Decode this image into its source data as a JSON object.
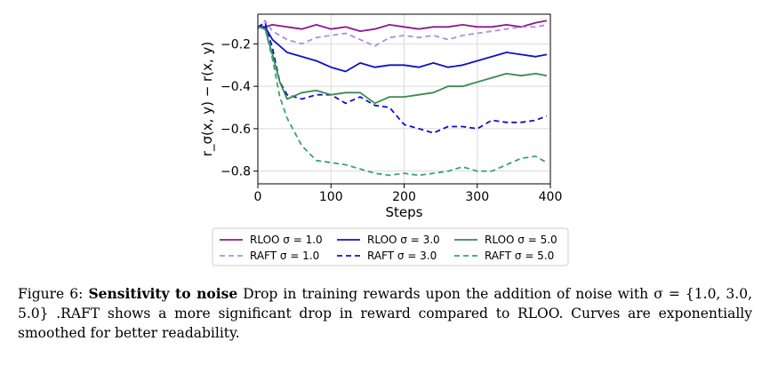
{
  "chart_data": {
    "type": "line",
    "xlabel": "Steps",
    "ylabel": "r_σ(x, y) − r(x, y)",
    "xlim": [
      0,
      400
    ],
    "ylim": [
      -0.86,
      -0.06
    ],
    "xticks": [
      0,
      100,
      200,
      300,
      400
    ],
    "xtick_labels": [
      "0",
      "100",
      "200",
      "300",
      "400"
    ],
    "yticks": [
      -0.2,
      -0.4,
      -0.6,
      -0.8
    ],
    "ytick_labels": [
      "−0.2",
      "−0.4",
      "−0.6",
      "−0.8"
    ],
    "grid": true,
    "legend_position": "below",
    "series": [
      {
        "name": "RLOO σ = 1.0",
        "color": "#8b1a8b",
        "dashed": false,
        "x": [
          0,
          10,
          20,
          40,
          60,
          80,
          100,
          120,
          140,
          160,
          180,
          200,
          220,
          240,
          260,
          280,
          300,
          320,
          340,
          360,
          380,
          395
        ],
        "y": [
          -0.12,
          -0.12,
          -0.11,
          -0.12,
          -0.13,
          -0.11,
          -0.13,
          -0.12,
          -0.14,
          -0.13,
          -0.11,
          -0.12,
          -0.13,
          -0.12,
          -0.12,
          -0.11,
          -0.12,
          -0.12,
          -0.11,
          -0.12,
          -0.1,
          -0.09
        ]
      },
      {
        "name": "RAFT σ = 1.0",
        "color": "#b28ddb",
        "dashed": true,
        "x": [
          0,
          10,
          20,
          40,
          60,
          80,
          100,
          120,
          140,
          160,
          180,
          200,
          220,
          240,
          260,
          280,
          300,
          320,
          340,
          360,
          380,
          395
        ],
        "y": [
          -0.13,
          -0.09,
          -0.14,
          -0.18,
          -0.2,
          -0.17,
          -0.16,
          -0.15,
          -0.18,
          -0.21,
          -0.17,
          -0.16,
          -0.17,
          -0.16,
          -0.18,
          -0.16,
          -0.15,
          -0.14,
          -0.13,
          -0.12,
          -0.12,
          -0.11
        ]
      },
      {
        "name": "RLOO σ = 3.0",
        "color": "#1010cc",
        "dashed": false,
        "x": [
          0,
          10,
          20,
          40,
          60,
          80,
          100,
          120,
          140,
          160,
          180,
          200,
          220,
          240,
          260,
          280,
          300,
          320,
          340,
          360,
          380,
          395
        ],
        "y": [
          -0.12,
          -0.12,
          -0.18,
          -0.24,
          -0.26,
          -0.28,
          -0.31,
          -0.33,
          -0.29,
          -0.31,
          -0.3,
          -0.3,
          -0.31,
          -0.29,
          -0.31,
          -0.3,
          -0.28,
          -0.26,
          -0.24,
          -0.25,
          -0.26,
          -0.25
        ]
      },
      {
        "name": "RAFT σ = 3.0",
        "color": "#1010cc",
        "dashed": true,
        "x": [
          0,
          10,
          20,
          30,
          40,
          60,
          80,
          100,
          120,
          140,
          160,
          180,
          200,
          220,
          240,
          260,
          280,
          300,
          320,
          340,
          360,
          380,
          395
        ],
        "y": [
          -0.12,
          -0.1,
          -0.22,
          -0.38,
          -0.44,
          -0.46,
          -0.44,
          -0.44,
          -0.48,
          -0.45,
          -0.49,
          -0.5,
          -0.58,
          -0.6,
          -0.62,
          -0.59,
          -0.59,
          -0.6,
          -0.56,
          -0.57,
          -0.57,
          -0.56,
          -0.54
        ]
      },
      {
        "name": "RLOO σ = 5.0",
        "color": "#3a8a4f",
        "dashed": false,
        "x": [
          0,
          10,
          20,
          30,
          40,
          60,
          80,
          100,
          120,
          140,
          160,
          180,
          200,
          220,
          240,
          260,
          280,
          300,
          320,
          340,
          360,
          380,
          395
        ],
        "y": [
          -0.12,
          -0.13,
          -0.25,
          -0.38,
          -0.46,
          -0.43,
          -0.42,
          -0.44,
          -0.43,
          -0.43,
          -0.48,
          -0.45,
          -0.45,
          -0.44,
          -0.43,
          -0.4,
          -0.4,
          -0.38,
          -0.36,
          -0.34,
          -0.35,
          -0.34,
          -0.35
        ]
      },
      {
        "name": "RAFT σ = 5.0",
        "color": "#3aa36a",
        "dashed": true,
        "x": [
          0,
          10,
          20,
          30,
          40,
          60,
          80,
          100,
          120,
          140,
          160,
          180,
          200,
          220,
          240,
          260,
          280,
          300,
          320,
          340,
          360,
          380,
          395
        ],
        "y": [
          -0.12,
          -0.13,
          -0.27,
          -0.45,
          -0.55,
          -0.68,
          -0.75,
          -0.76,
          -0.77,
          -0.79,
          -0.81,
          -0.82,
          -0.81,
          -0.82,
          -0.81,
          -0.8,
          -0.78,
          -0.8,
          -0.8,
          -0.77,
          -0.74,
          -0.73,
          -0.76
        ]
      }
    ]
  },
  "caption": {
    "label": "Figure 6: ",
    "bold_title": "Sensitivity to noise",
    "text": " Drop in training rewards upon the addition of noise with σ = {1.0, 3.0, 5.0} .RAFT shows a more significant drop in reward compared to RLOO. Curves are exponentially smoothed for better readability."
  }
}
